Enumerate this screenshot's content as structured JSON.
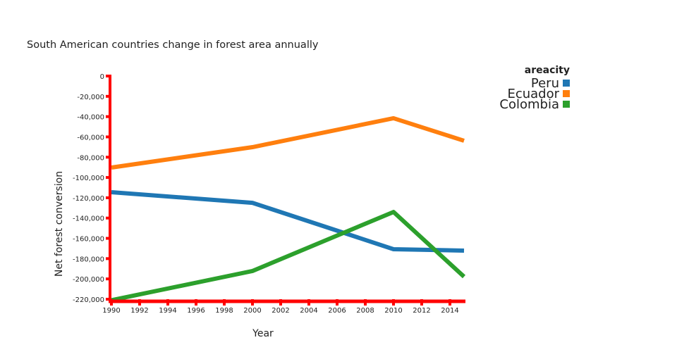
{
  "chart_data": {
    "type": "line",
    "title": "South American countries change in forest area annually",
    "xlabel": "Year",
    "ylabel": "Net forest conversion",
    "xlim": [
      1990,
      2015
    ],
    "ylim": [
      -220000,
      0
    ],
    "xticks": [
      1990,
      1992,
      1994,
      1996,
      1998,
      2000,
      2002,
      2004,
      2006,
      2008,
      2010,
      2012,
      2014
    ],
    "xtick_labels": [
      "1990",
      "1992",
      "1994",
      "1996",
      "1998",
      "2000",
      "2002",
      "2004",
      "2006",
      "2008",
      "2010",
      "2012",
      "2014"
    ],
    "yticks": [
      0,
      -20000,
      -40000,
      -60000,
      -80000,
      -100000,
      -120000,
      -140000,
      -160000,
      -180000,
      -200000,
      -220000
    ],
    "ytick_labels": [
      "0",
      "-20,000",
      "-40,000",
      "-60,000",
      "-80,000",
      "-100,000",
      "-120,000",
      "-140,000",
      "-160,000",
      "-180,000",
      "-200,000",
      "-220,000"
    ],
    "legend_title": "areacity",
    "legend_position": "top-right",
    "axis_color": "#ff0000",
    "x": [
      1990,
      2000,
      2010,
      2015
    ],
    "series": [
      {
        "name": "Peru",
        "color": "#1f77b4",
        "values": [
          -114500,
          -125000,
          -170700,
          -172100
        ]
      },
      {
        "name": "Ecuador",
        "color": "#ff7f0e",
        "values": [
          -90200,
          -70100,
          -41600,
          -63800
        ]
      },
      {
        "name": "Colombia",
        "color": "#2ca02c",
        "values": [
          -221000,
          -192200,
          -134000,
          -197800
        ]
      }
    ]
  }
}
